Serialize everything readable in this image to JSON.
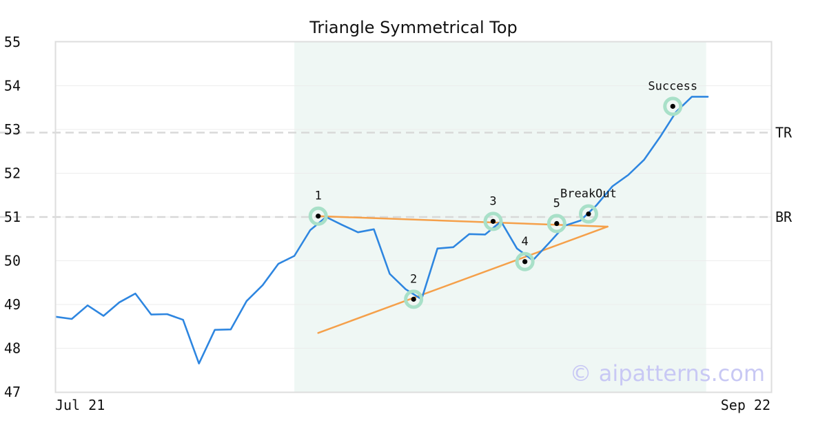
{
  "chart_data": {
    "type": "line",
    "title": "Triangle Symmetrical Top",
    "x_start_label": "Jul 21",
    "x_end_label": "Sep 22",
    "ylim": [
      47,
      55
    ],
    "yticks": [
      "47",
      "48",
      "49",
      "50",
      "51",
      "52",
      "53",
      "54",
      "55"
    ],
    "grid": true,
    "colors": {
      "price": "#2e86e0",
      "trendline": "#f5a04a",
      "pattern_bg": "#eff7f4",
      "marker_ring": "#a8e0c8",
      "level_line": "#d8d8d8",
      "watermark": "#c8c8f4"
    },
    "series": [
      {
        "values": [
          48.72,
          48.67,
          48.98,
          48.74,
          49.05,
          49.25,
          48.77,
          48.78,
          48.65,
          47.65,
          48.42,
          48.43,
          49.08,
          49.44,
          49.93,
          50.11,
          50.7,
          51.0,
          50.82,
          50.65,
          50.72,
          49.7,
          49.35,
          49.12,
          50.28,
          50.31,
          50.61,
          50.6,
          50.9,
          50.28,
          50.01,
          50.4,
          50.8,
          50.92,
          51.27,
          51.7,
          51.96,
          52.31,
          52.83,
          53.4,
          53.75,
          53.75
        ]
      }
    ],
    "pattern_range": [
      15,
      40.9
    ],
    "trendlines": [
      {
        "x": [
          16.5,
          34.7
        ],
        "y": [
          51.02,
          50.78
        ]
      },
      {
        "x": [
          16.5,
          34.7
        ],
        "y": [
          48.35,
          50.78
        ]
      }
    ],
    "levels": [
      {
        "label": "TR",
        "value": 52.93
      },
      {
        "label": "BR",
        "value": 51.0
      }
    ],
    "markers": [
      {
        "label": "1",
        "x": 16.5,
        "y": 51.02
      },
      {
        "label": "2",
        "x": 22.5,
        "y": 49.12
      },
      {
        "label": "3",
        "x": 27.5,
        "y": 50.9
      },
      {
        "label": "4",
        "x": 29.5,
        "y": 49.98
      },
      {
        "label": "5",
        "x": 31.5,
        "y": 50.85
      },
      {
        "label": "BreakOut",
        "x": 33.5,
        "y": 51.07
      },
      {
        "label": "Success",
        "x": 38.8,
        "y": 53.53
      }
    ],
    "watermark": "© aipatterns.com"
  }
}
